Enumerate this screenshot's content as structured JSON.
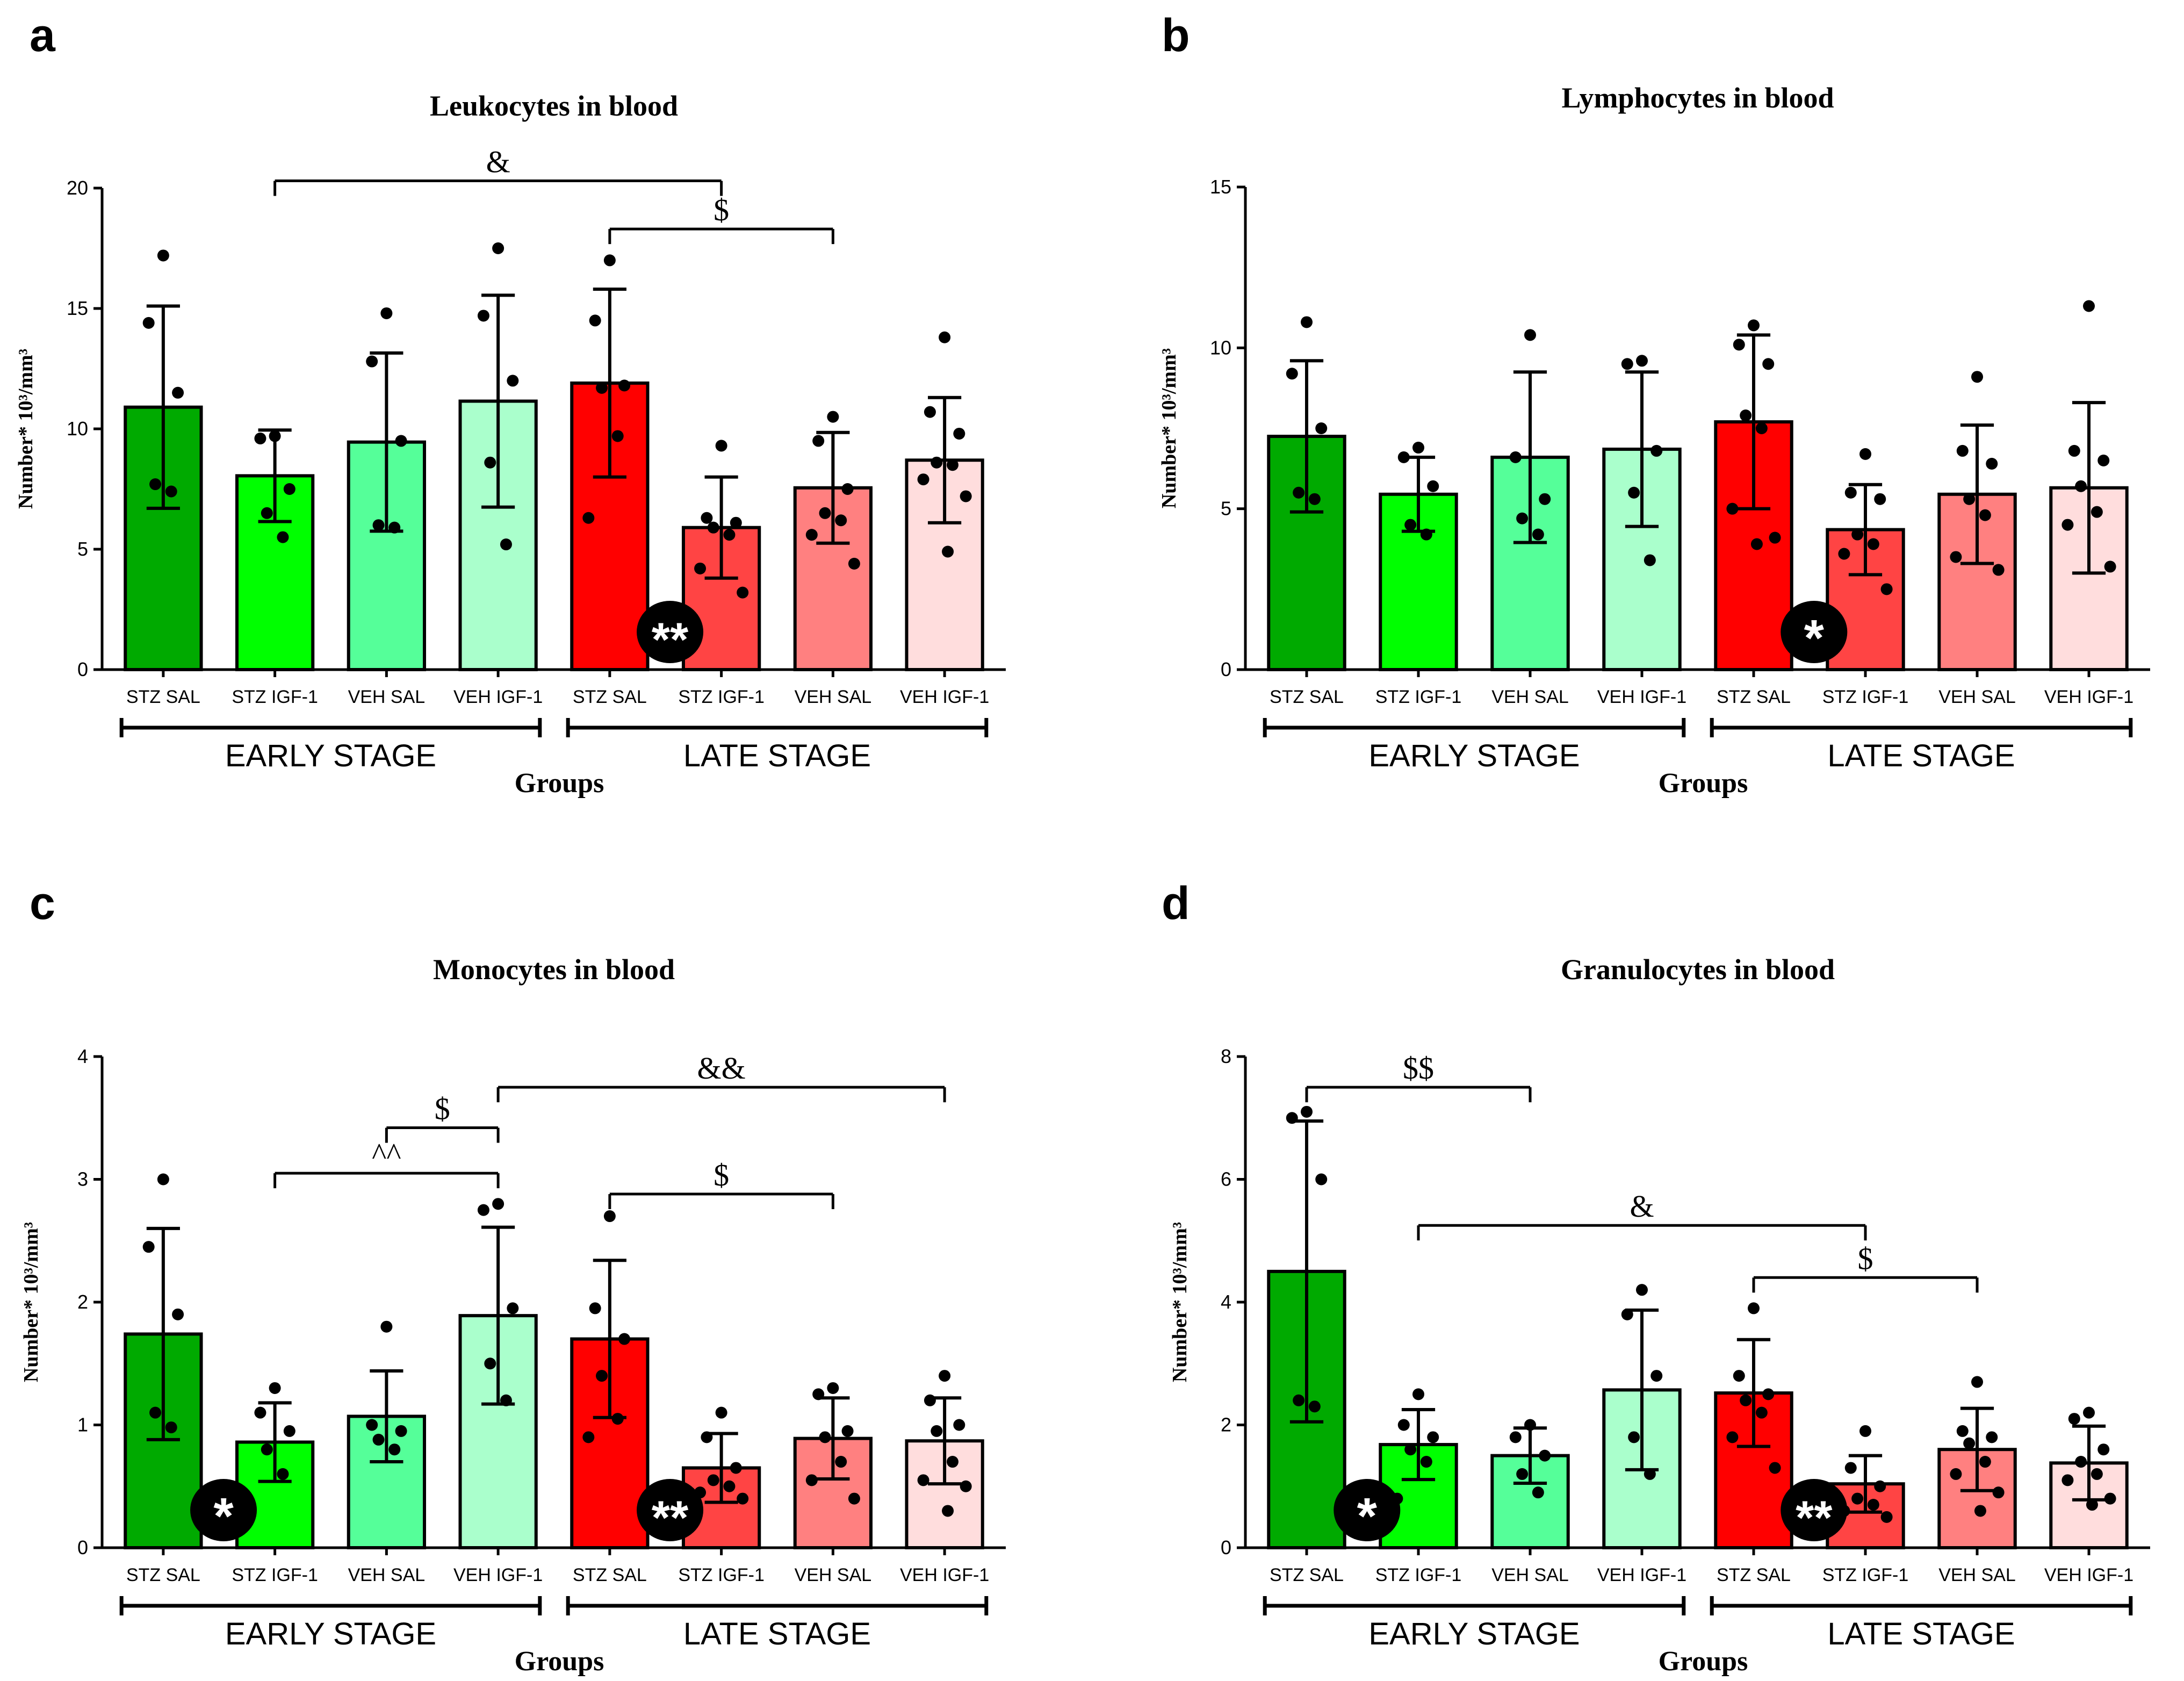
{
  "chart_data": [
    {
      "id": "a",
      "panel_letter": "a",
      "type": "bar",
      "title": "Leukocytes in blood",
      "ylabel": "Number* 10³/mm³",
      "xlabel": "Groups",
      "ylim": [
        0,
        20
      ],
      "yticks": [
        0,
        5,
        10,
        15,
        20
      ],
      "ytick_labels": [
        "0",
        "5",
        "10",
        "15",
        "20"
      ],
      "categories": [
        "STZ SAL",
        "STZ IGF-1",
        "VEH SAL",
        "VEH IGF-1",
        "STZ SAL",
        "STZ IGF-1",
        "VEH SAL",
        "VEH IGF-1"
      ],
      "stages": [
        {
          "label": "EARLY STAGE",
          "from": 0,
          "to": 3
        },
        {
          "label": "LATE STAGE",
          "from": 4,
          "to": 7
        }
      ],
      "colors": [
        "#00aa00",
        "#00ff00",
        "#55ff99",
        "#aaffcc",
        "#ff0000",
        "#ff4444",
        "#ff8080",
        "#ffdddd"
      ],
      "values": [
        10.9,
        8.05,
        9.45,
        11.15,
        11.9,
        5.9,
        7.55,
        8.7
      ],
      "errors": [
        4.2,
        1.9,
        3.7,
        4.4,
        3.9,
        2.1,
        2.3,
        2.6
      ],
      "points": [
        [
          17.2,
          14.4,
          11.5,
          7.7,
          7.4
        ],
        [
          9.7,
          9.6,
          7.5,
          6.5,
          5.5
        ],
        [
          14.8,
          12.8,
          9.5,
          6.0,
          5.9
        ],
        [
          17.5,
          14.7,
          12.0,
          8.6,
          5.2
        ],
        [
          17.0,
          14.5,
          11.8,
          11.7,
          9.7,
          6.3
        ],
        [
          9.3,
          6.3,
          6.1,
          5.9,
          5.6,
          4.2,
          3.2
        ],
        [
          10.5,
          9.5,
          7.5,
          6.5,
          6.2,
          5.6,
          4.4
        ],
        [
          13.8,
          10.7,
          9.8,
          8.6,
          8.5,
          7.9,
          7.2,
          4.9
        ]
      ],
      "comparisons": [
        {
          "from": 1,
          "to": 5,
          "y": 20.3,
          "label": "&"
        },
        {
          "from": 4,
          "to": 6,
          "y": 18.3,
          "label": "$"
        }
      ],
      "badges": [
        {
          "group": 5,
          "label": "**"
        }
      ]
    },
    {
      "id": "b",
      "panel_letter": "b",
      "type": "bar",
      "title": "Lymphocytes in blood",
      "ylabel": "Number* 10³/mm³",
      "xlabel": "Groups",
      "ylim": [
        0,
        15
      ],
      "yticks": [
        0,
        5,
        10,
        15
      ],
      "ytick_labels": [
        "0",
        "5",
        "10",
        "15"
      ],
      "categories": [
        "STZ SAL",
        "STZ IGF-1",
        "VEH SAL",
        "VEH IGF-1",
        "STZ SAL",
        "STZ IGF-1",
        "VEH SAL",
        "VEH IGF-1"
      ],
      "stages": [
        {
          "label": "EARLY STAGE",
          "from": 0,
          "to": 3
        },
        {
          "label": "LATE STAGE",
          "from": 4,
          "to": 7
        }
      ],
      "colors": [
        "#00aa00",
        "#00ff00",
        "#55ff99",
        "#aaffcc",
        "#ff0000",
        "#ff4444",
        "#ff8080",
        "#ffdddd"
      ],
      "values": [
        7.25,
        5.45,
        6.6,
        6.85,
        7.7,
        4.35,
        5.45,
        5.65
      ],
      "errors": [
        2.35,
        1.15,
        2.65,
        2.4,
        2.7,
        1.4,
        2.15,
        2.65
      ],
      "points": [
        [
          10.8,
          9.2,
          7.5,
          5.5,
          5.3
        ],
        [
          6.9,
          6.6,
          5.7,
          4.5,
          4.2
        ],
        [
          10.4,
          6.6,
          5.3,
          4.7,
          4.2
        ],
        [
          9.6,
          9.5,
          6.8,
          5.5,
          3.4
        ],
        [
          10.7,
          10.1,
          9.5,
          7.9,
          7.5,
          5.0,
          4.1,
          3.9
        ],
        [
          6.7,
          5.5,
          5.3,
          4.2,
          3.9,
          3.6,
          2.5
        ],
        [
          9.1,
          6.8,
          6.4,
          5.3,
          4.8,
          3.5,
          3.1
        ],
        [
          11.3,
          6.8,
          6.5,
          5.7,
          4.9,
          4.5,
          3.2
        ]
      ],
      "comparisons": [],
      "badges": [
        {
          "group": 5,
          "label": "*"
        }
      ]
    },
    {
      "id": "c",
      "panel_letter": "c",
      "type": "bar",
      "title": "Monocytes in blood",
      "ylabel": "Number* 10³/mm³",
      "xlabel": "Groups",
      "ylim": [
        0,
        4
      ],
      "yticks": [
        0,
        1,
        2,
        3,
        4
      ],
      "ytick_labels": [
        "0",
        "1",
        "2",
        "3",
        "4"
      ],
      "categories": [
        "STZ SAL",
        "STZ IGF-1",
        "VEH SAL",
        "VEH IGF-1",
        "STZ SAL",
        "STZ IGF-1",
        "VEH SAL",
        "VEH IGF-1"
      ],
      "stages": [
        {
          "label": "EARLY STAGE",
          "from": 0,
          "to": 3
        },
        {
          "label": "LATE STAGE",
          "from": 4,
          "to": 7
        }
      ],
      "colors": [
        "#00aa00",
        "#00ff00",
        "#55ff99",
        "#aaffcc",
        "#ff0000",
        "#ff4444",
        "#ff8080",
        "#ffdddd"
      ],
      "values": [
        1.74,
        0.86,
        1.07,
        1.89,
        1.7,
        0.65,
        0.89,
        0.87
      ],
      "errors": [
        0.86,
        0.32,
        0.37,
        0.72,
        0.64,
        0.28,
        0.33,
        0.35
      ],
      "points": [
        [
          3.0,
          2.45,
          1.9,
          1.1,
          0.98
        ],
        [
          1.3,
          1.1,
          0.95,
          0.8,
          0.6
        ],
        [
          1.8,
          1.0,
          0.95,
          0.88,
          0.8
        ],
        [
          2.8,
          2.75,
          1.95,
          1.5,
          1.2
        ],
        [
          2.7,
          1.95,
          1.7,
          1.4,
          1.05,
          0.9
        ],
        [
          1.1,
          0.9,
          0.65,
          0.55,
          0.5,
          0.45,
          0.4
        ],
        [
          1.3,
          1.25,
          0.95,
          0.9,
          0.7,
          0.55,
          0.4
        ],
        [
          1.4,
          1.2,
          1.0,
          0.95,
          0.7,
          0.55,
          0.5,
          0.3
        ]
      ],
      "comparisons": [
        {
          "from": 3,
          "to": 7,
          "y": 3.75,
          "label": "&&"
        },
        {
          "from": 2,
          "to": 3,
          "y": 3.42,
          "label": "$"
        },
        {
          "from": 1,
          "to": 3,
          "y": 3.05,
          "label": "^^"
        },
        {
          "from": 4,
          "to": 6,
          "y": 2.88,
          "label": "$"
        }
      ],
      "badges": [
        {
          "group": 1,
          "label": "*"
        },
        {
          "group": 5,
          "label": "**"
        }
      ]
    },
    {
      "id": "d",
      "panel_letter": "d",
      "type": "bar",
      "title": "Granulocytes in blood",
      "ylabel": "Number* 10³/mm³",
      "xlabel": "Groups",
      "ylim": [
        0,
        8
      ],
      "yticks": [
        0,
        2,
        4,
        6,
        8
      ],
      "ytick_labels": [
        "0",
        "2",
        "4",
        "6",
        "8"
      ],
      "categories": [
        "STZ SAL",
        "STZ IGF-1",
        "VEH SAL",
        "VEH IGF-1",
        "STZ SAL",
        "STZ IGF-1",
        "VEH SAL",
        "VEH IGF-1"
      ],
      "stages": [
        {
          "label": "EARLY STAGE",
          "from": 0,
          "to": 3
        },
        {
          "label": "LATE STAGE",
          "from": 4,
          "to": 7
        }
      ],
      "colors": [
        "#00aa00",
        "#00ff00",
        "#55ff99",
        "#aaffcc",
        "#ff0000",
        "#ff4444",
        "#ff8080",
        "#ffdddd"
      ],
      "values": [
        4.5,
        1.68,
        1.5,
        2.57,
        2.52,
        1.04,
        1.6,
        1.38
      ],
      "errors": [
        2.45,
        0.57,
        0.45,
        1.3,
        0.87,
        0.46,
        0.67,
        0.6
      ],
      "points": [
        [
          7.1,
          7.0,
          6.0,
          2.4,
          2.3
        ],
        [
          2.5,
          2.0,
          1.8,
          1.6,
          1.4,
          0.8
        ],
        [
          2.0,
          1.8,
          1.5,
          1.2,
          0.9
        ],
        [
          4.2,
          3.8,
          2.8,
          1.8,
          1.2
        ],
        [
          3.9,
          2.8,
          2.5,
          2.4,
          2.2,
          1.8,
          1.3
        ],
        [
          1.9,
          1.3,
          1.0,
          0.8,
          0.7,
          0.6,
          0.5
        ],
        [
          2.7,
          1.9,
          1.8,
          1.7,
          1.4,
          1.2,
          0.9,
          0.6
        ],
        [
          2.2,
          2.1,
          1.6,
          1.4,
          1.2,
          1.1,
          0.8,
          0.7
        ]
      ],
      "comparisons": [
        {
          "from": 0,
          "to": 2,
          "y": 7.5,
          "label": "$$"
        },
        {
          "from": 1,
          "to": 5,
          "y": 5.25,
          "label": "&"
        },
        {
          "from": 4,
          "to": 6,
          "y": 4.4,
          "label": "$"
        }
      ],
      "badges": [
        {
          "group": 1,
          "label": "*"
        },
        {
          "group": 5,
          "label": "**"
        }
      ]
    }
  ]
}
